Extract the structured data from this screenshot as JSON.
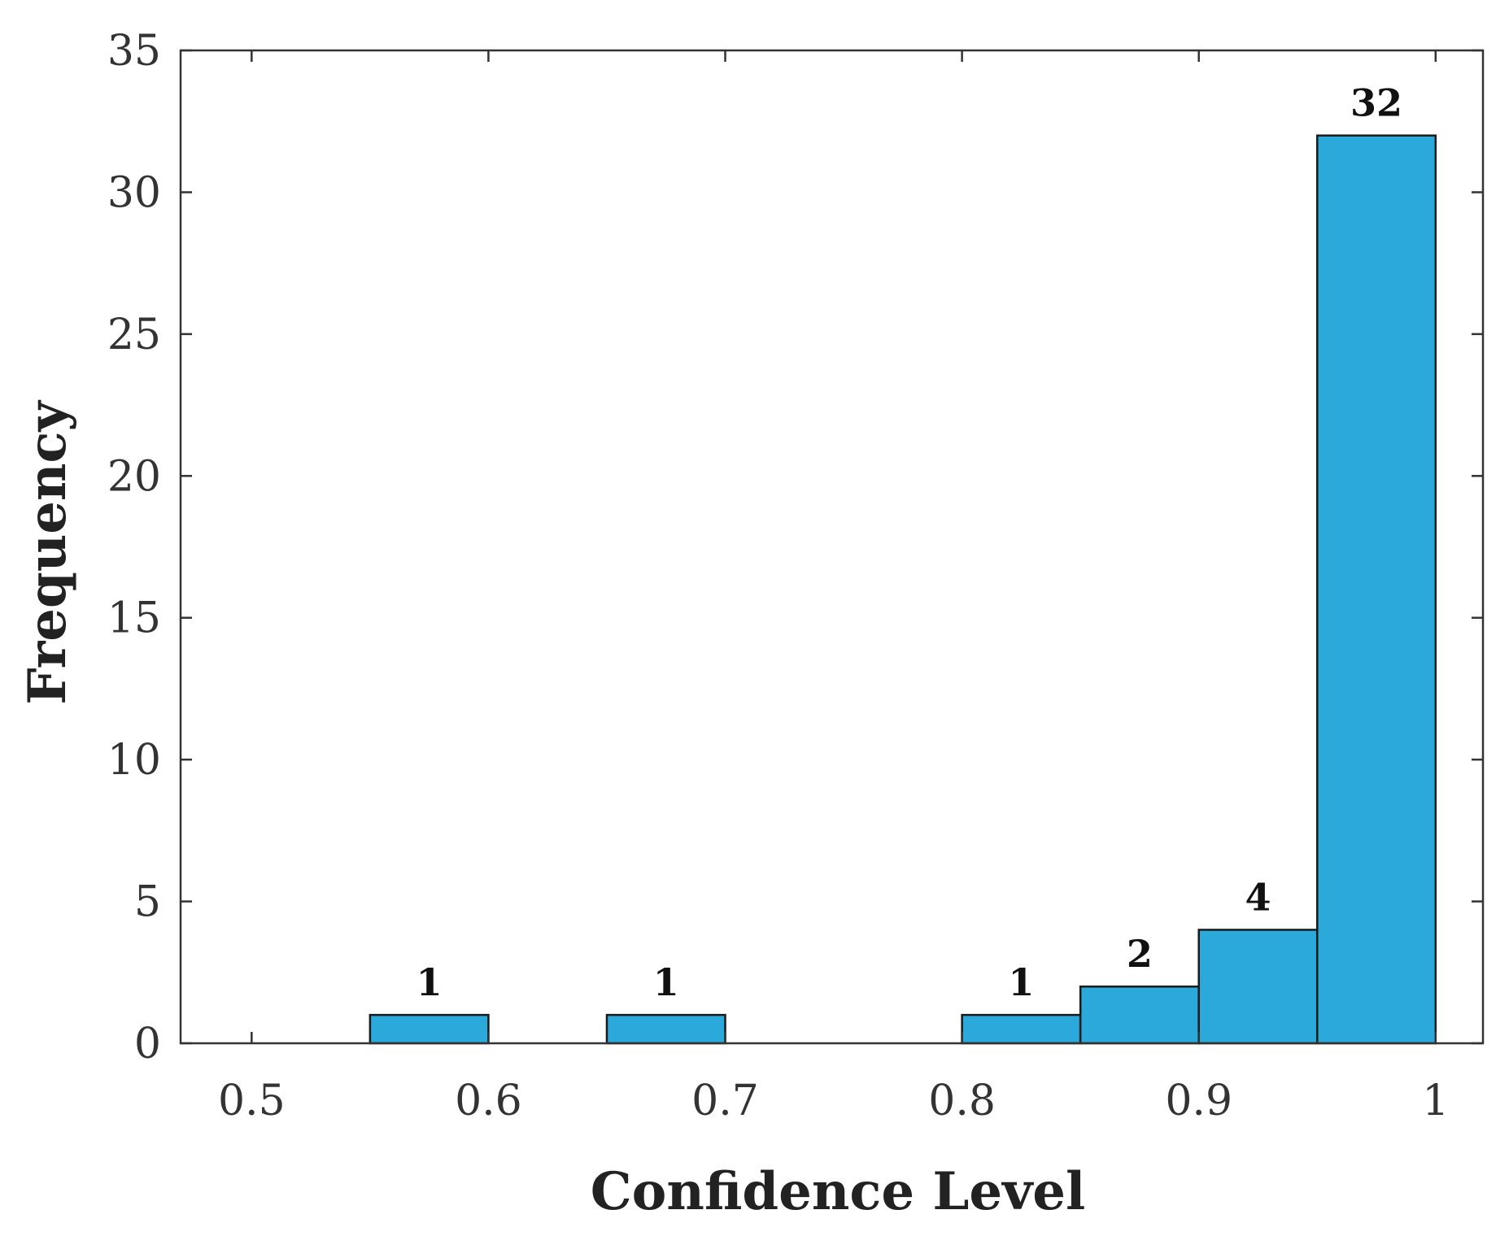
{
  "chart_data": {
    "type": "bar",
    "title": "",
    "xlabel": "Confidence Level",
    "ylabel": "Frequency",
    "xlim": [
      0.47,
      1.02
    ],
    "ylim": [
      0,
      35
    ],
    "xticks": [
      0.5,
      0.6,
      0.7,
      0.8,
      0.9,
      1
    ],
    "xtick_labels": [
      "0.5",
      "0.6",
      "0.7",
      "0.8",
      "0.9",
      "1"
    ],
    "yticks": [
      0,
      5,
      10,
      15,
      20,
      25,
      30,
      35
    ],
    "ytick_labels": [
      "0",
      "5",
      "10",
      "15",
      "20",
      "25",
      "30",
      "35"
    ],
    "bins": [
      {
        "start": 0.55,
        "end": 0.6,
        "value": 1,
        "label": "1"
      },
      {
        "start": 0.65,
        "end": 0.7,
        "value": 1,
        "label": "1"
      },
      {
        "start": 0.8,
        "end": 0.85,
        "value": 1,
        "label": "1"
      },
      {
        "start": 0.85,
        "end": 0.9,
        "value": 2,
        "label": "2"
      },
      {
        "start": 0.9,
        "end": 0.95,
        "value": 4,
        "label": "4"
      },
      {
        "start": 0.95,
        "end": 1.0,
        "value": 32,
        "label": "32"
      }
    ],
    "bar_color": "#2AA9DA",
    "grid": false,
    "legend": "none"
  }
}
